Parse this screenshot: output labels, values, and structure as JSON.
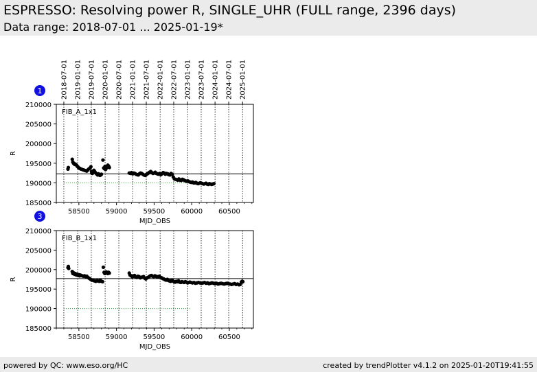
{
  "header": {
    "title": "ESPRESSO: Resolving power R, SINGLE_UHR (FULL range, 2396 days)",
    "subtitle": "Data range: 2018-07-01 ... 2025-01-19*"
  },
  "footer": {
    "left": "powered by QC: www.eso.org/HC",
    "right": "created by trendPlotter v4.1.2 on 2025-01-20T19:41:55"
  },
  "chart_data": [
    {
      "type": "scatter",
      "badge": "1",
      "panel_label": "FIB_A_1x1",
      "xlabel": "MJD_OBS",
      "ylabel": "R",
      "xlim": [
        58200,
        60820
      ],
      "ylim": [
        185000,
        210000
      ],
      "x_ticks": [
        58500,
        59000,
        59500,
        60000,
        60500
      ],
      "y_ticks": [
        185000,
        190000,
        195000,
        200000,
        205000,
        210000
      ],
      "date_ticks": [
        "2018-07-01",
        "2019-01-01",
        "2019-07-01",
        "2020-01-01",
        "2020-07-01",
        "2021-01-01",
        "2021-07-01",
        "2022-01-01",
        "2022-07-01",
        "2023-01-01",
        "2023-07-01",
        "2024-01-01",
        "2024-07-01",
        "2025-01-01"
      ],
      "date_tick_mjd": [
        58300,
        58484,
        58665,
        58849,
        59031,
        59215,
        59396,
        59580,
        59761,
        59945,
        60126,
        60310,
        60492,
        60676
      ],
      "reference_line": 192300,
      "threshold_line": {
        "value": 190000,
        "x_range": [
          58300,
          59980
        ],
        "color": "#2a9d2a"
      },
      "series": [
        {
          "name": "",
          "x": [
            58355,
            58360,
            58412,
            58420,
            58428,
            58436,
            58444,
            58452,
            58460,
            58470,
            58480,
            58490,
            58500,
            58510,
            58520,
            58530,
            58545,
            58560,
            58575,
            58590,
            58605,
            58620,
            58635,
            58650,
            58660,
            58668,
            58672,
            58680,
            58690,
            58700,
            58710,
            58720,
            58730,
            58740,
            58750,
            58760,
            58770,
            58780,
            58790,
            58800,
            58820,
            58830,
            58840,
            58848,
            58855,
            58862,
            58870,
            58878,
            58885,
            58895,
            58905,
            59170,
            59185,
            59200,
            59215,
            59230,
            59245,
            59260,
            59275,
            59290,
            59305,
            59320,
            59335,
            59350,
            59365,
            59380,
            59395,
            59410,
            59425,
            59440,
            59455,
            59470,
            59485,
            59500,
            59515,
            59530,
            59545,
            59560,
            59575,
            59590,
            59605,
            59620,
            59635,
            59650,
            59665,
            59680,
            59695,
            59710,
            59725,
            59740,
            59755,
            59770,
            59785,
            59800,
            59815,
            59830,
            59845,
            59860,
            59875,
            59890,
            59905,
            59920,
            59935,
            59950,
            59965,
            59980,
            59995,
            60010,
            60025,
            60040,
            60055,
            60070,
            60085,
            60100,
            60115,
            60130,
            60145,
            60160,
            60175,
            60190,
            60205,
            60220,
            60235,
            60250,
            60265,
            60280,
            60295
          ],
          "y": [
            193500,
            193900,
            196000,
            195300,
            195000,
            194900,
            194700,
            194800,
            194600,
            194500,
            194200,
            194000,
            193800,
            193700,
            193600,
            193500,
            193400,
            193300,
            193200,
            193100,
            193000,
            193300,
            193600,
            193800,
            194100,
            192900,
            192500,
            192400,
            192800,
            193200,
            192900,
            192600,
            192400,
            192200,
            192000,
            192300,
            192100,
            191900,
            192000,
            192200,
            195800,
            193800,
            193600,
            194200,
            193400,
            193700,
            193900,
            194100,
            194500,
            194300,
            193900,
            192500,
            192400,
            192600,
            192300,
            192500,
            192400,
            192200,
            192100,
            192000,
            192300,
            192500,
            192400,
            192200,
            192000,
            191900,
            192100,
            192300,
            192500,
            192700,
            192900,
            192600,
            192400,
            192500,
            192700,
            192400,
            192300,
            192200,
            192400,
            192100,
            192300,
            192600,
            192500,
            192200,
            192400,
            192300,
            192100,
            192000,
            192400,
            192200,
            191500,
            191000,
            190900,
            190800,
            190700,
            191000,
            190700,
            190600,
            190900,
            190800,
            190600,
            190500,
            190400,
            190500,
            190300,
            190200,
            190100,
            190200,
            190000,
            190000,
            190100,
            189900,
            189800,
            189900,
            190000,
            189900,
            189800,
            189700,
            189800,
            189900,
            189700,
            189600,
            189800,
            189700,
            189600,
            189700,
            189800
          ]
        }
      ]
    },
    {
      "type": "scatter",
      "badge": "3",
      "panel_label": "FIB_B_1x1",
      "xlabel": "MJD_OBS",
      "ylabel": "R",
      "xlim": [
        58200,
        60820
      ],
      "ylim": [
        185000,
        210000
      ],
      "x_ticks": [
        58500,
        59000,
        59500,
        60000,
        60500
      ],
      "y_ticks": [
        185000,
        190000,
        195000,
        200000,
        205000,
        210000
      ],
      "date_tick_mjd": [
        58300,
        58484,
        58665,
        58849,
        59031,
        59215,
        59396,
        59580,
        59761,
        59945,
        60126,
        60310,
        60492,
        60676
      ],
      "reference_line": 197700,
      "threshold_line": {
        "value": 190000,
        "x_range": [
          58300,
          59980
        ],
        "color": "#2a9d2a"
      },
      "series": [
        {
          "name": "",
          "x": [
            58355,
            58360,
            58365,
            58412,
            58420,
            58428,
            58436,
            58444,
            58452,
            58460,
            58470,
            58480,
            58490,
            58500,
            58510,
            58520,
            58530,
            58545,
            58560,
            58575,
            58590,
            58605,
            58620,
            58635,
            58650,
            58665,
            58680,
            58695,
            58710,
            58725,
            58740,
            58755,
            58770,
            58785,
            58800,
            58815,
            58825,
            58835,
            58845,
            58855,
            58865,
            58875,
            58885,
            58895,
            58905,
            59170,
            59180,
            59195,
            59210,
            59225,
            59240,
            59255,
            59270,
            59285,
            59300,
            59315,
            59330,
            59345,
            59360,
            59375,
            59390,
            59405,
            59420,
            59435,
            59450,
            59465,
            59480,
            59495,
            59510,
            59525,
            59540,
            59555,
            59570,
            59585,
            59600,
            59615,
            59630,
            59645,
            59660,
            59675,
            59690,
            59705,
            59720,
            59735,
            59750,
            59765,
            59780,
            59795,
            59810,
            59825,
            59840,
            59855,
            59870,
            59885,
            59900,
            59915,
            59930,
            59945,
            59960,
            59975,
            59990,
            60010,
            60030,
            60050,
            60070,
            60090,
            60110,
            60130,
            60150,
            60170,
            60190,
            60210,
            60230,
            60250,
            60270,
            60290,
            60310,
            60330,
            60350,
            60370,
            60390,
            60410,
            60430,
            60450,
            60470,
            60490,
            60510,
            60530,
            60550,
            60570,
            60590,
            60610,
            60630,
            60645,
            60660,
            60670,
            60680
          ],
          "y": [
            200500,
            200800,
            200300,
            199500,
            199000,
            199200,
            198900,
            198800,
            199000,
            198700,
            198600,
            198800,
            198500,
            198700,
            198400,
            198600,
            198500,
            198400,
            198300,
            198400,
            198200,
            198300,
            198000,
            197800,
            197600,
            197400,
            197300,
            197200,
            197100,
            197000,
            197200,
            197100,
            197000,
            197300,
            197000,
            196900,
            200600,
            199300,
            199000,
            199100,
            199400,
            199200,
            199000,
            199300,
            199100,
            199100,
            198600,
            198400,
            198200,
            198300,
            198500,
            198100,
            198000,
            198300,
            198200,
            197900,
            198000,
            198100,
            198200,
            197800,
            197600,
            197900,
            198000,
            198200,
            198400,
            198500,
            198300,
            198200,
            198400,
            198300,
            198100,
            198200,
            198300,
            198000,
            197900,
            197700,
            197600,
            197400,
            197300,
            197500,
            197200,
            197100,
            197000,
            197300,
            197100,
            196900,
            196800,
            197000,
            196900,
            197100,
            196800,
            196700,
            196900,
            196800,
            196700,
            196900,
            196800,
            196600,
            196700,
            196800,
            196700,
            196600,
            196700,
            196500,
            196600,
            196700,
            196600,
            196500,
            196600,
            196700,
            196500,
            196600,
            196400,
            196500,
            196600,
            196500,
            196400,
            196500,
            196300,
            196400,
            196500,
            196400,
            196300,
            196400,
            196500,
            196400,
            196300,
            196200,
            196300,
            196400,
            196200,
            196300,
            196100,
            196200,
            196800,
            197000,
            196900
          ]
        }
      ]
    }
  ]
}
